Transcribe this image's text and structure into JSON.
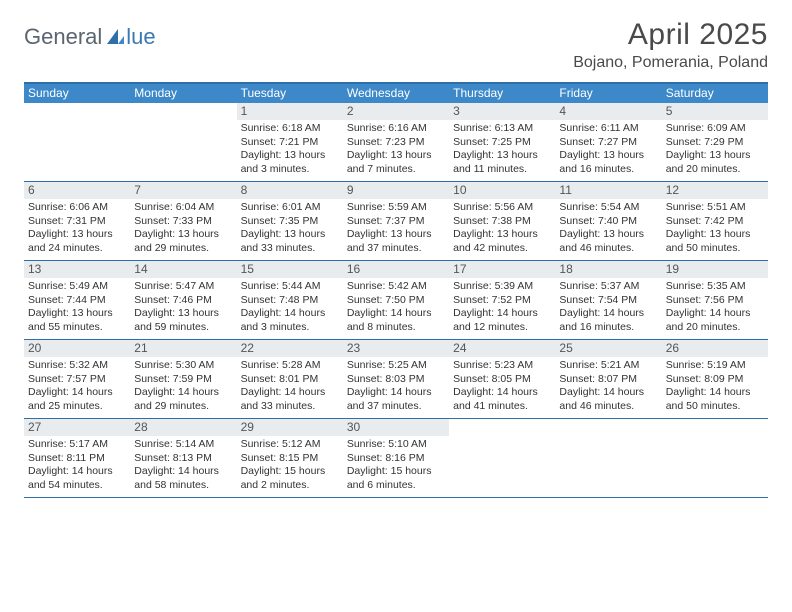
{
  "logo": {
    "text_left": "General",
    "text_right": "lue"
  },
  "title": "April 2025",
  "location": "Bojano, Pomerania, Poland",
  "colors": {
    "header_bg": "#3c88c8",
    "header_text": "#ffffff",
    "rule": "#2f6fa7",
    "daynum_bg": "#e9ecef",
    "logo_gray": "#5a6570",
    "logo_blue": "#3c79b4"
  },
  "weekdays": [
    "Sunday",
    "Monday",
    "Tuesday",
    "Wednesday",
    "Thursday",
    "Friday",
    "Saturday"
  ],
  "leading_blanks": 2,
  "days": [
    {
      "n": 1,
      "sunrise": "6:18 AM",
      "sunset": "7:21 PM",
      "daylight": "13 hours and 3 minutes."
    },
    {
      "n": 2,
      "sunrise": "6:16 AM",
      "sunset": "7:23 PM",
      "daylight": "13 hours and 7 minutes."
    },
    {
      "n": 3,
      "sunrise": "6:13 AM",
      "sunset": "7:25 PM",
      "daylight": "13 hours and 11 minutes."
    },
    {
      "n": 4,
      "sunrise": "6:11 AM",
      "sunset": "7:27 PM",
      "daylight": "13 hours and 16 minutes."
    },
    {
      "n": 5,
      "sunrise": "6:09 AM",
      "sunset": "7:29 PM",
      "daylight": "13 hours and 20 minutes."
    },
    {
      "n": 6,
      "sunrise": "6:06 AM",
      "sunset": "7:31 PM",
      "daylight": "13 hours and 24 minutes."
    },
    {
      "n": 7,
      "sunrise": "6:04 AM",
      "sunset": "7:33 PM",
      "daylight": "13 hours and 29 minutes."
    },
    {
      "n": 8,
      "sunrise": "6:01 AM",
      "sunset": "7:35 PM",
      "daylight": "13 hours and 33 minutes."
    },
    {
      "n": 9,
      "sunrise": "5:59 AM",
      "sunset": "7:37 PM",
      "daylight": "13 hours and 37 minutes."
    },
    {
      "n": 10,
      "sunrise": "5:56 AM",
      "sunset": "7:38 PM",
      "daylight": "13 hours and 42 minutes."
    },
    {
      "n": 11,
      "sunrise": "5:54 AM",
      "sunset": "7:40 PM",
      "daylight": "13 hours and 46 minutes."
    },
    {
      "n": 12,
      "sunrise": "5:51 AM",
      "sunset": "7:42 PM",
      "daylight": "13 hours and 50 minutes."
    },
    {
      "n": 13,
      "sunrise": "5:49 AM",
      "sunset": "7:44 PM",
      "daylight": "13 hours and 55 minutes."
    },
    {
      "n": 14,
      "sunrise": "5:47 AM",
      "sunset": "7:46 PM",
      "daylight": "13 hours and 59 minutes."
    },
    {
      "n": 15,
      "sunrise": "5:44 AM",
      "sunset": "7:48 PM",
      "daylight": "14 hours and 3 minutes."
    },
    {
      "n": 16,
      "sunrise": "5:42 AM",
      "sunset": "7:50 PM",
      "daylight": "14 hours and 8 minutes."
    },
    {
      "n": 17,
      "sunrise": "5:39 AM",
      "sunset": "7:52 PM",
      "daylight": "14 hours and 12 minutes."
    },
    {
      "n": 18,
      "sunrise": "5:37 AM",
      "sunset": "7:54 PM",
      "daylight": "14 hours and 16 minutes."
    },
    {
      "n": 19,
      "sunrise": "5:35 AM",
      "sunset": "7:56 PM",
      "daylight": "14 hours and 20 minutes."
    },
    {
      "n": 20,
      "sunrise": "5:32 AM",
      "sunset": "7:57 PM",
      "daylight": "14 hours and 25 minutes."
    },
    {
      "n": 21,
      "sunrise": "5:30 AM",
      "sunset": "7:59 PM",
      "daylight": "14 hours and 29 minutes."
    },
    {
      "n": 22,
      "sunrise": "5:28 AM",
      "sunset": "8:01 PM",
      "daylight": "14 hours and 33 minutes."
    },
    {
      "n": 23,
      "sunrise": "5:25 AM",
      "sunset": "8:03 PM",
      "daylight": "14 hours and 37 minutes."
    },
    {
      "n": 24,
      "sunrise": "5:23 AM",
      "sunset": "8:05 PM",
      "daylight": "14 hours and 41 minutes."
    },
    {
      "n": 25,
      "sunrise": "5:21 AM",
      "sunset": "8:07 PM",
      "daylight": "14 hours and 46 minutes."
    },
    {
      "n": 26,
      "sunrise": "5:19 AM",
      "sunset": "8:09 PM",
      "daylight": "14 hours and 50 minutes."
    },
    {
      "n": 27,
      "sunrise": "5:17 AM",
      "sunset": "8:11 PM",
      "daylight": "14 hours and 54 minutes."
    },
    {
      "n": 28,
      "sunrise": "5:14 AM",
      "sunset": "8:13 PM",
      "daylight": "14 hours and 58 minutes."
    },
    {
      "n": 29,
      "sunrise": "5:12 AM",
      "sunset": "8:15 PM",
      "daylight": "15 hours and 2 minutes."
    },
    {
      "n": 30,
      "sunrise": "5:10 AM",
      "sunset": "8:16 PM",
      "daylight": "15 hours and 6 minutes."
    }
  ],
  "labels": {
    "sunrise_prefix": "Sunrise: ",
    "sunset_prefix": "Sunset: ",
    "daylight_prefix": "Daylight: "
  }
}
